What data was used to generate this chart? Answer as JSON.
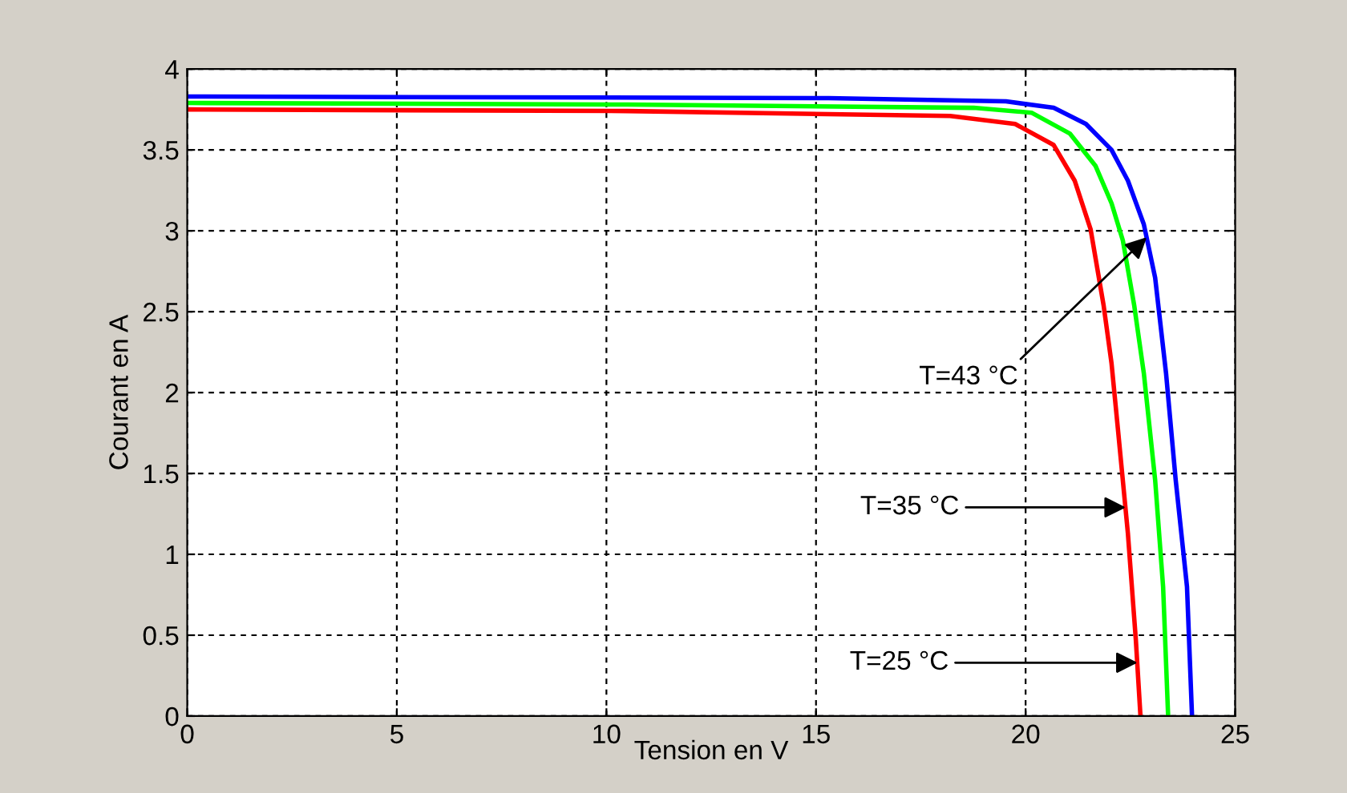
{
  "chart_data": {
    "type": "line",
    "xlabel": "Tension en V",
    "ylabel": "Courant en A",
    "xlim": [
      0,
      25
    ],
    "ylim": [
      0,
      4
    ],
    "xticks": [
      0,
      5,
      10,
      15,
      20,
      25
    ],
    "yticks": [
      0,
      0.5,
      1,
      1.5,
      2,
      2.5,
      3,
      3.5,
      4
    ],
    "grid": true,
    "line_style": "solid",
    "series": [
      {
        "color": "#ff0000",
        "x": [
          0,
          10.5,
          18.2,
          19.75,
          20.67,
          21.17,
          21.55,
          21.86,
          22.05,
          22.2,
          22.44,
          22.63,
          22.74
        ],
        "values": [
          3.75,
          3.74,
          3.71,
          3.66,
          3.53,
          3.31,
          3.01,
          2.54,
          2.18,
          1.78,
          1.13,
          0.47,
          0
        ]
      },
      {
        "color": "#00ff00",
        "x": [
          0,
          10.5,
          18.76,
          20.14,
          21.06,
          21.67,
          22.05,
          22.32,
          22.59,
          22.82,
          23.09,
          23.28,
          23.4
        ],
        "values": [
          3.79,
          3.78,
          3.76,
          3.73,
          3.6,
          3.4,
          3.17,
          2.94,
          2.54,
          2.12,
          1.46,
          0.8,
          0
        ]
      },
      {
        "color": "#0000ff",
        "x": [
          0,
          15.3,
          19.53,
          20.67,
          21.44,
          22.05,
          22.44,
          22.82,
          23.09,
          23.35,
          23.58,
          23.85,
          23.97
        ],
        "values": [
          3.83,
          3.82,
          3.8,
          3.76,
          3.66,
          3.5,
          3.31,
          3.04,
          2.71,
          2.12,
          1.46,
          0.8,
          0
        ]
      }
    ],
    "annotations": [
      {
        "text": "T=43 °C",
        "x": 22.89,
        "y": 2.96
      },
      {
        "text": "T=35 °C",
        "x": 22.39,
        "y": 1.29
      },
      {
        "text": "T=25 °C",
        "x": 22.67,
        "y": 0.33
      }
    ]
  }
}
